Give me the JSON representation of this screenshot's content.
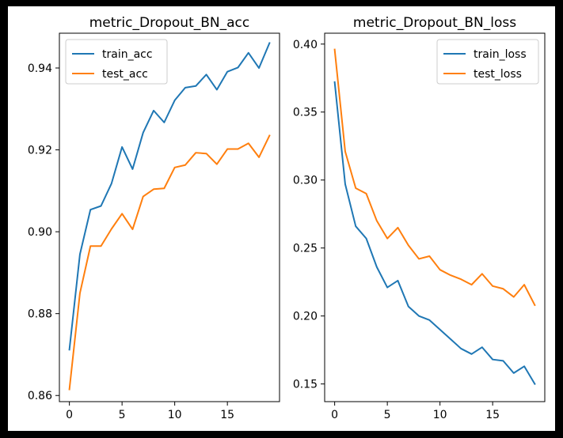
{
  "chart_data": [
    {
      "type": "line",
      "title": "metric_Dropout_BN_acc",
      "xlabel": "",
      "ylabel": "",
      "x": [
        0,
        1,
        2,
        3,
        4,
        5,
        6,
        7,
        8,
        9,
        10,
        11,
        12,
        13,
        14,
        15,
        16,
        17,
        18,
        19
      ],
      "xlim": [
        -0.95,
        19.95
      ],
      "ylim": [
        0.8585,
        0.9485
      ],
      "xticks": [
        0,
        5,
        10,
        15
      ],
      "xtick_labels": [
        "0",
        "5",
        "10",
        "15"
      ],
      "yticks": [
        0.86,
        0.88,
        0.9,
        0.92,
        0.94
      ],
      "ytick_labels": [
        "0.86",
        "0.88",
        "0.90",
        "0.92",
        "0.94"
      ],
      "legend_position": "upper-left",
      "series": [
        {
          "name": "train_acc",
          "color": "#1f77b4",
          "values": [
            0.8712,
            0.8945,
            0.9054,
            0.9063,
            0.9118,
            0.9207,
            0.9153,
            0.9242,
            0.9296,
            0.9267,
            0.9321,
            0.9352,
            0.9356,
            0.9384,
            0.9347,
            0.9391,
            0.9401,
            0.9437,
            0.94,
            0.9461
          ]
        },
        {
          "name": "test_acc",
          "color": "#ff7f0e",
          "values": [
            0.8615,
            0.885,
            0.8965,
            0.8965,
            0.9007,
            0.9044,
            0.9006,
            0.9086,
            0.9104,
            0.9106,
            0.9157,
            0.9163,
            0.9193,
            0.9191,
            0.9165,
            0.9202,
            0.9202,
            0.9216,
            0.9182,
            0.9235
          ]
        }
      ]
    },
    {
      "type": "line",
      "title": "metric_Dropout_BN_loss",
      "xlabel": "",
      "ylabel": "",
      "x": [
        0,
        1,
        2,
        3,
        4,
        5,
        6,
        7,
        8,
        9,
        10,
        11,
        12,
        13,
        14,
        15,
        16,
        17,
        18,
        19
      ],
      "xlim": [
        -0.95,
        19.95
      ],
      "ylim": [
        0.137,
        0.408
      ],
      "xticks": [
        0,
        5,
        10,
        15
      ],
      "xtick_labels": [
        "0",
        "5",
        "10",
        "15"
      ],
      "yticks": [
        0.15,
        0.2,
        0.25,
        0.3,
        0.35,
        0.4
      ],
      "ytick_labels": [
        "0.15",
        "0.20",
        "0.25",
        "0.30",
        "0.35",
        "0.40"
      ],
      "legend_position": "upper-right",
      "series": [
        {
          "name": "train_loss",
          "color": "#1f77b4",
          "values": [
            0.372,
            0.297,
            0.266,
            0.257,
            0.236,
            0.221,
            0.226,
            0.207,
            0.2,
            0.197,
            0.19,
            0.183,
            0.176,
            0.172,
            0.177,
            0.168,
            0.167,
            0.158,
            0.163,
            0.15
          ]
        },
        {
          "name": "test_loss",
          "color": "#ff7f0e",
          "values": [
            0.396,
            0.321,
            0.294,
            0.29,
            0.27,
            0.257,
            0.265,
            0.252,
            0.242,
            0.244,
            0.234,
            0.23,
            0.227,
            0.223,
            0.231,
            0.222,
            0.22,
            0.214,
            0.223,
            0.208
          ]
        }
      ]
    }
  ]
}
